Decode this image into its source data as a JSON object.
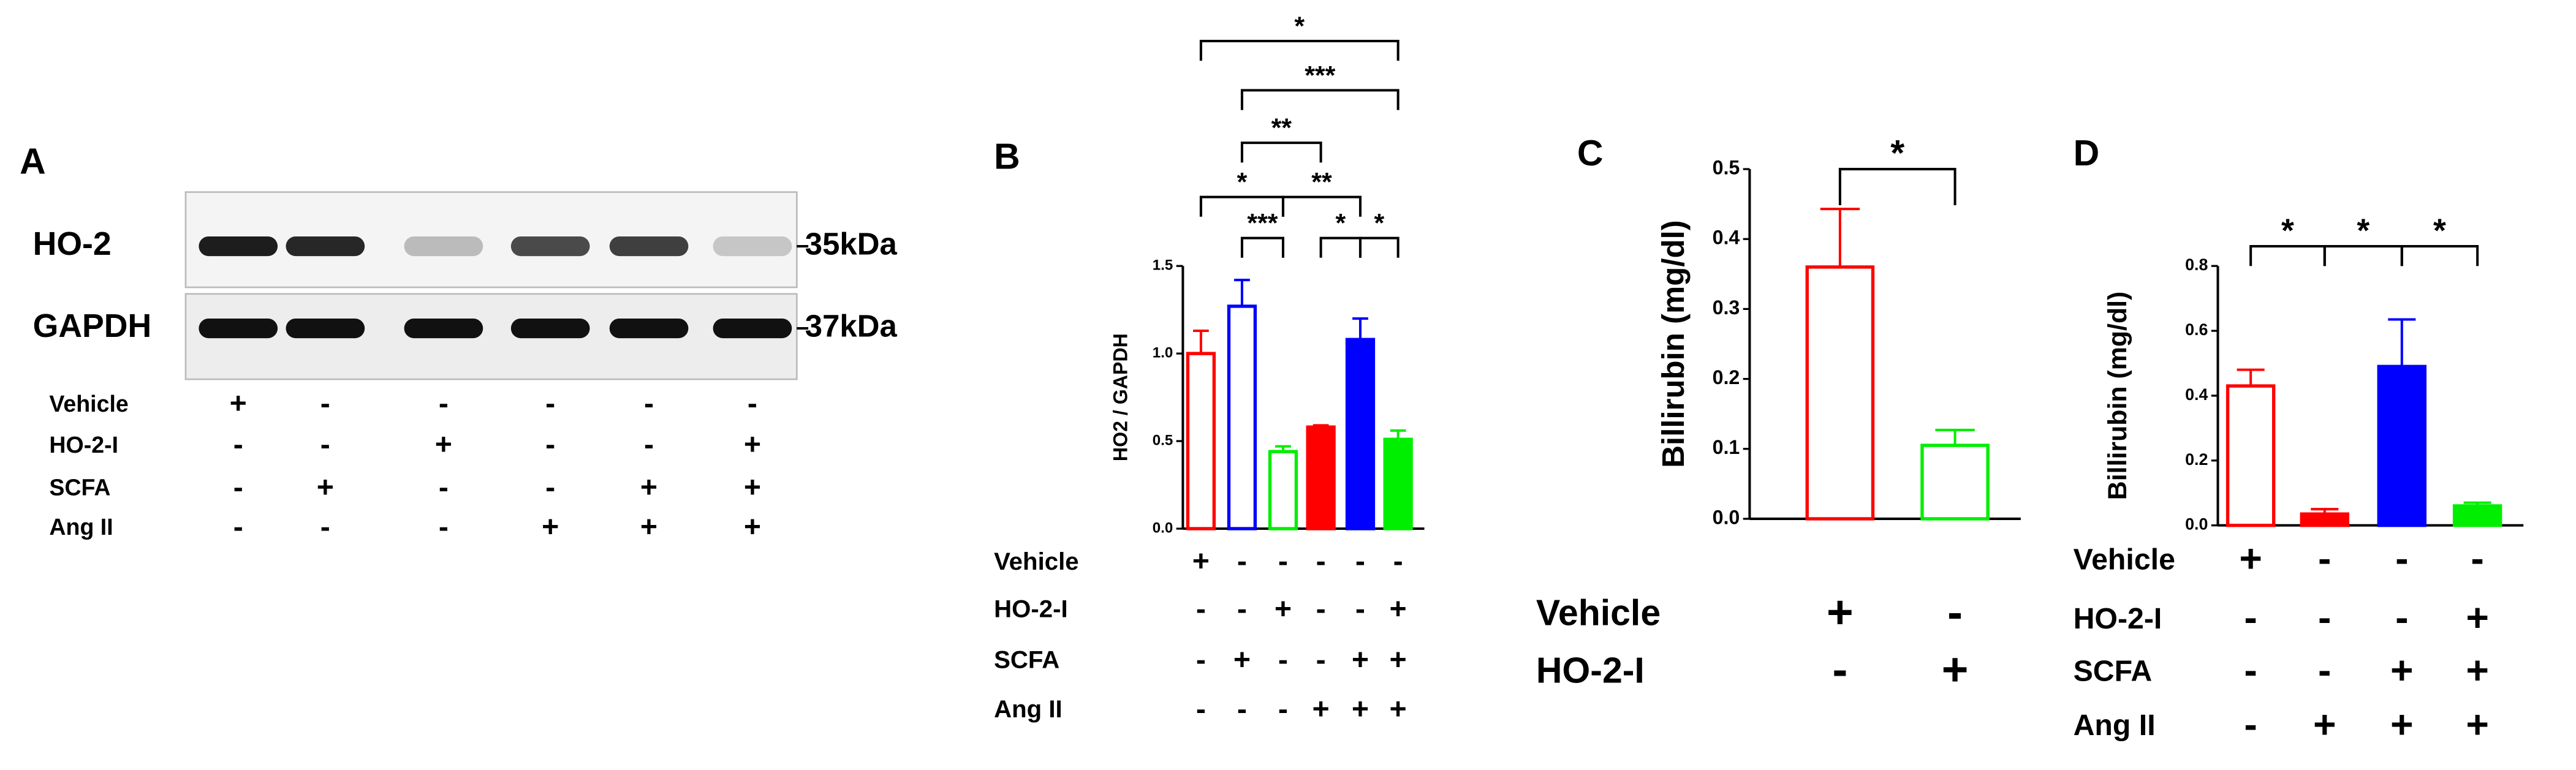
{
  "blot": {
    "panel": "A",
    "rows": [
      {
        "name": "HO-2",
        "size": "35kDa"
      },
      {
        "name": "GAPDH",
        "size": "37kDa"
      }
    ],
    "treatments": [
      {
        "name": "Vehicle",
        "signs": [
          "+",
          "-",
          "-",
          "-",
          "-",
          "-"
        ]
      },
      {
        "name": "HO-2-I",
        "signs": [
          "-",
          "-",
          "+",
          "-",
          "-",
          "+"
        ]
      },
      {
        "name": "SCFA",
        "signs": [
          "-",
          "+",
          "-",
          "-",
          "+",
          "+"
        ]
      },
      {
        "name": "Ang II",
        "signs": [
          "-",
          "-",
          "-",
          "+",
          "+",
          "+"
        ]
      }
    ]
  },
  "chart_data": [
    {
      "type": "bar",
      "panel": "B",
      "ylabel": "HO2 / GAPDH",
      "ylim": [
        0,
        1.5
      ],
      "yticks": [
        {
          "value": 0,
          "label": "0.0"
        },
        {
          "value": 0.5,
          "label": "0.5"
        },
        {
          "value": 1,
          "label": "1.0"
        },
        {
          "value": 1.5,
          "label": "1.5"
        }
      ],
      "values": [
        1.0,
        1.27,
        0.44,
        0.58,
        1.08,
        0.51
      ],
      "errors": [
        0.13,
        0.15,
        0.03,
        0.01,
        0.12,
        0.05
      ],
      "colors": [
        "#ff0000",
        "#0000ff",
        "#00ee00",
        "#ff0000",
        "#0000ff",
        "#00ee00"
      ],
      "filled": [
        false,
        false,
        false,
        true,
        true,
        true
      ],
      "treatments": [
        {
          "name": "Vehicle",
          "signs": [
            "+",
            "-",
            "-",
            "-",
            "-",
            "-"
          ]
        },
        {
          "name": "HO-2-I",
          "signs": [
            "-",
            "-",
            "+",
            "-",
            "-",
            "+"
          ]
        },
        {
          "name": "SCFA",
          "signs": [
            "-",
            "+",
            "-",
            "-",
            "+",
            "+"
          ]
        },
        {
          "name": "Ang II",
          "signs": [
            "-",
            "-",
            "-",
            "+",
            "+",
            "+"
          ]
        }
      ],
      "comparisons": [
        {
          "bars": [
            0,
            2
          ],
          "label": "*"
        },
        {
          "bars": [
            1,
            2
          ],
          "label": "***"
        },
        {
          "bars": [
            2,
            4
          ],
          "label": "**"
        },
        {
          "bars": [
            3,
            4
          ],
          "label": "*"
        },
        {
          "bars": [
            4,
            5
          ],
          "label": "*"
        },
        {
          "bars": [
            1,
            3
          ],
          "label": "**"
        },
        {
          "bars": [
            1,
            5
          ],
          "label": "***"
        },
        {
          "bars": [
            0,
            5
          ],
          "label": "*"
        }
      ]
    },
    {
      "type": "bar",
      "panel": "C",
      "ylabel": "Billirubin (mg/dl)",
      "ylim": [
        0,
        0.5
      ],
      "yticks": [
        {
          "value": 0,
          "label": "0.0"
        },
        0.1,
        0.2,
        0.3,
        0.4,
        0.5
      ],
      "values": [
        0.36,
        0.105
      ],
      "errors": [
        0.083,
        0.022
      ],
      "colors": [
        "#ff0000",
        "#00ee00"
      ],
      "filled": [
        false,
        false
      ],
      "treatments": [
        {
          "name": "Vehicle",
          "signs": [
            "+",
            "-"
          ]
        },
        {
          "name": "HO-2-I",
          "signs": [
            "-",
            "+"
          ]
        }
      ],
      "comparisons": [
        {
          "bars": [
            0,
            1
          ],
          "label": "*"
        }
      ]
    },
    {
      "type": "bar",
      "panel": "D",
      "ylabel": "Billirubin (mg/dl)",
      "ylim": [
        0,
        0.8
      ],
      "yticks": [
        {
          "value": 0,
          "label": "0.0"
        },
        0.2,
        0.4,
        0.6,
        0.8
      ],
      "values": [
        0.43,
        0.035,
        0.49,
        0.06
      ],
      "errors": [
        0.05,
        0.015,
        0.145,
        0.01
      ],
      "colors": [
        "#ff0000",
        "#ff0000",
        "#0000ff",
        "#00ee00"
      ],
      "filled": [
        false,
        true,
        true,
        true
      ],
      "treatments": [
        {
          "name": "Vehicle",
          "signs": [
            "+",
            "-",
            "-",
            "-"
          ]
        },
        {
          "name": "HO-2-I",
          "signs": [
            "-",
            "-",
            "-",
            "+"
          ]
        },
        {
          "name": "SCFA",
          "signs": [
            "-",
            "-",
            "+",
            "+"
          ]
        },
        {
          "name": "Ang II",
          "signs": [
            "-",
            "+",
            "+",
            "+"
          ]
        }
      ],
      "comparisons": [
        {
          "bars": [
            0,
            1
          ],
          "label": "*"
        },
        {
          "bars": [
            1,
            2
          ],
          "label": "*"
        },
        {
          "bars": [
            2,
            3
          ],
          "label": "*"
        }
      ]
    }
  ]
}
